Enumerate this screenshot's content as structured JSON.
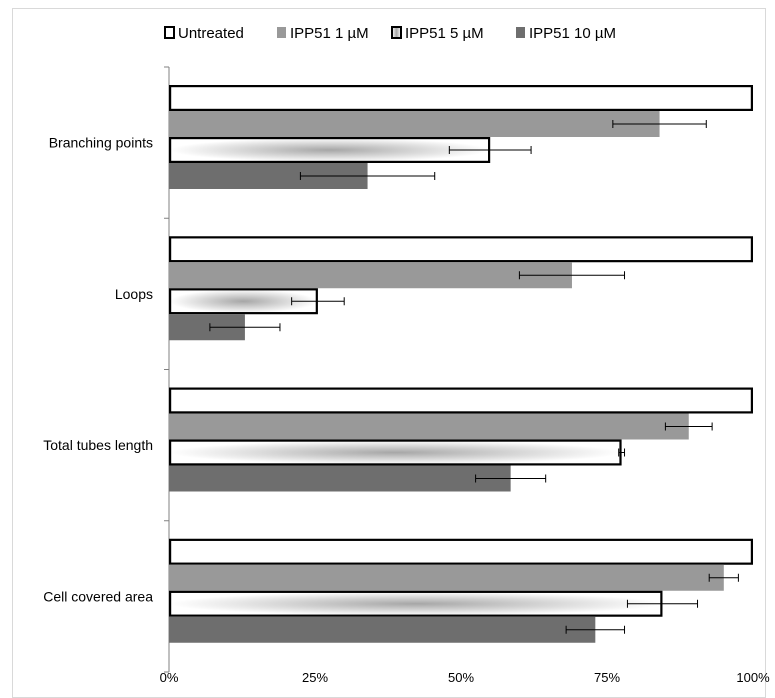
{
  "chart_data": {
    "type": "bar",
    "orientation": "horizontal",
    "categories": [
      "Branching points",
      "Loops",
      "Total tubes length",
      "Cell covered area"
    ],
    "series": [
      {
        "name": "Untreated",
        "values": [
          100,
          100,
          100,
          100
        ],
        "error": [
          0,
          0,
          0,
          0
        ],
        "style": "outline",
        "color": "#ffffff"
      },
      {
        "name": "IPP51 1 µM",
        "values": [
          84,
          69,
          89,
          95
        ],
        "error": [
          8,
          9,
          4,
          2.5
        ],
        "style": "fill",
        "color": "#999999"
      },
      {
        "name": "IPP51 5 µM",
        "values": [
          55,
          25.5,
          77.5,
          84.5
        ],
        "error": [
          7,
          4.5,
          0.5,
          6
        ],
        "style": "gradient",
        "color": "#a6a6a6"
      },
      {
        "name": "IPP51 10 µM",
        "values": [
          34,
          13,
          58.5,
          73
        ],
        "error": [
          11.5,
          6,
          6,
          5
        ],
        "style": "fill",
        "color": "#6e6e6e"
      }
    ],
    "xlim": [
      0,
      100
    ],
    "xticks": [
      "0%",
      "25%",
      "50%",
      "75%",
      "100%"
    ],
    "xlabel": "",
    "ylabel": "",
    "title": "",
    "grid": false,
    "legend_position": "top"
  }
}
